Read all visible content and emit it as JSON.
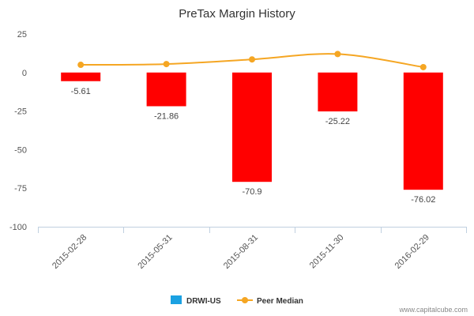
{
  "chart_data": {
    "type": "bar",
    "title": "PreTax Margin History",
    "categories": [
      "2015-02-28",
      "2015-05-31",
      "2015-08-31",
      "2015-11-30",
      "2016-02-29"
    ],
    "series": [
      {
        "name": "DRWI-US",
        "type": "bar",
        "values": [
          -5.61,
          -21.86,
          -70.9,
          -25.22,
          -76.02
        ],
        "data_labels": [
          "-5.61",
          "-21.86",
          "-70.9",
          "-25.22",
          "-76.02"
        ],
        "color": "#ff0000",
        "legend_color": "#1ba1e2"
      },
      {
        "name": "Peer Median",
        "type": "line",
        "values": [
          5,
          5.5,
          8.5,
          12,
          3.5
        ],
        "color": "#f5a623"
      }
    ],
    "ylim": [
      -100,
      25
    ],
    "yticks": [
      25,
      0,
      -25,
      -50,
      -75,
      -100
    ],
    "legend_position": "bottom-center",
    "grid": false
  },
  "credit": "www.capitalcube.com"
}
